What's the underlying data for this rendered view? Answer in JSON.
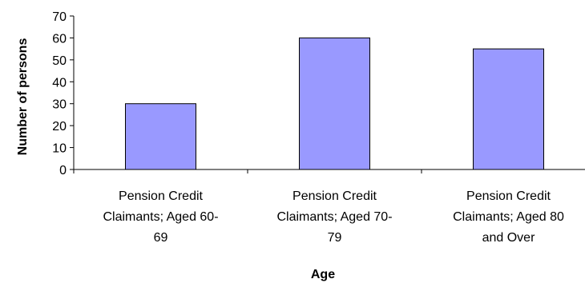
{
  "chart_data": {
    "type": "bar",
    "categories": [
      [
        "Pension Credit",
        "Claimants; Aged 60-",
        "69"
      ],
      [
        "Pension Credit",
        "Claimants; Aged 70-",
        "79"
      ],
      [
        "Pension Credit",
        "Claimants; Aged 80",
        "and Over"
      ]
    ],
    "values": [
      30,
      60,
      55
    ],
    "xlabel": "Age",
    "ylabel": "Number of persons",
    "ylim": [
      0,
      70
    ],
    "yticks": [
      "0",
      "10",
      "20",
      "30",
      "40",
      "50",
      "60",
      "70"
    ],
    "grid": false,
    "legend": "none",
    "bar_color": "#9999ff",
    "bar_edge_color": "#000000"
  }
}
